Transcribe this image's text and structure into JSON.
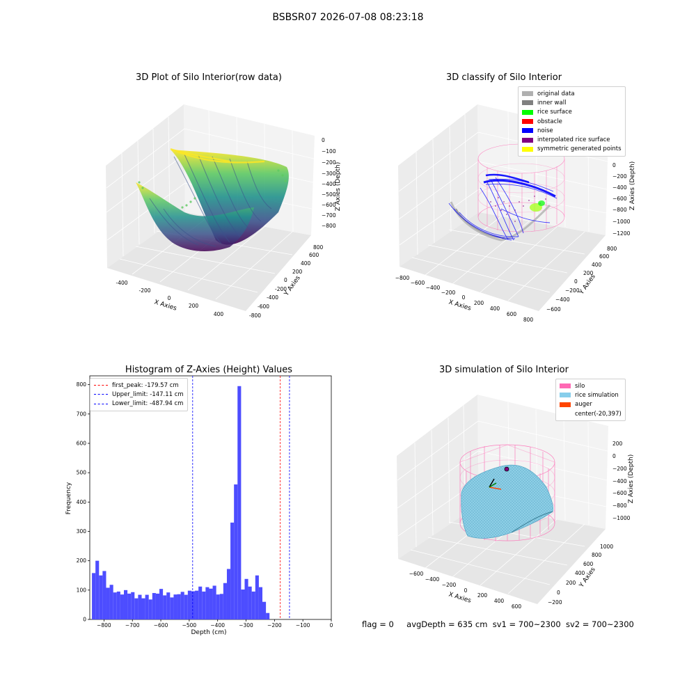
{
  "figure": {
    "title": "BSBSR07 2026-07-08 08:23:18",
    "footer": {
      "flag": "flag = 0",
      "avg_depth": "avgDepth = 635 cm",
      "sv1": "sv1 = 700~2300",
      "sv2": "sv2 = 700~2300"
    }
  },
  "panels": {
    "raw": {
      "title": "3D Plot of Silo Interior(row data)",
      "xlabel": "X Axies",
      "ylabel": "Y Axies",
      "zlabel": "Z Axies (Depth)",
      "xticks": [
        "-400",
        "-200",
        "0",
        "200",
        "400"
      ],
      "yticks": [
        "-800",
        "-600",
        "-400",
        "-200",
        "0",
        "200",
        "400",
        "600",
        "800"
      ],
      "zticks": [
        "0",
        "−100",
        "−200",
        "−300",
        "−400",
        "−500",
        "−600",
        "−700",
        "−800"
      ]
    },
    "classify": {
      "title": "3D classify of Silo Interior",
      "xlabel": "X Axies",
      "ylabel": "Y Axies",
      "zlabel": "Z Axies (Depth)",
      "xticks": [
        "−800",
        "−600",
        "−400",
        "−200",
        "0",
        "200",
        "400",
        "600",
        "800"
      ],
      "yticks": [
        "−600",
        "−400",
        "−200",
        "0",
        "200",
        "400",
        "600",
        "800"
      ],
      "zticks": [
        "400",
        "200",
        "0",
        "−200",
        "−400",
        "−600",
        "−800",
        "−1000",
        "−1200"
      ],
      "legend": [
        {
          "label": "original data",
          "color": "#b0b0b0"
        },
        {
          "label": "inner wall",
          "color": "#808080"
        },
        {
          "label": "rice surface",
          "color": "#00ff00"
        },
        {
          "label": "obstacle",
          "color": "#ff0000"
        },
        {
          "label": "noise",
          "color": "#0000ff"
        },
        {
          "label": "interpolated rice surface",
          "color": "#800080"
        },
        {
          "label": "symmetric generated points",
          "color": "#ffff00"
        }
      ]
    },
    "histogram": {
      "title": "Histogram of Z-Axies (Height) Values",
      "xlabel": "Depth (cm)",
      "ylabel": "Frequency",
      "xticks": [
        "−800",
        "−700",
        "−600",
        "−500",
        "−400",
        "−300",
        "−200",
        "−100",
        "0"
      ],
      "yticks": [
        "0",
        "100",
        "200",
        "300",
        "400",
        "500",
        "600",
        "700",
        "800"
      ],
      "legend": [
        {
          "label": "first_peak: -179.57 cm",
          "color": "#ff0000"
        },
        {
          "label": "Upper_limit: -147.11 cm",
          "color": "#0000ff"
        },
        {
          "label": "Lower_limit: -487.94 cm",
          "color": "#0000ff"
        }
      ]
    },
    "simulation": {
      "title": "3D simulation of Silo Interior",
      "xlabel": "X Axies",
      "ylabel": "Y Axies",
      "zlabel": "Z Axies (Depth)",
      "xticks": [
        "−600",
        "−400",
        "−200",
        "0",
        "200",
        "400",
        "600"
      ],
      "yticks": [
        "−200",
        "0",
        "200",
        "400",
        "600",
        "800",
        "1000"
      ],
      "zticks": [
        "200",
        "0",
        "−200",
        "−400",
        "−600",
        "−800",
        "−1000"
      ],
      "legend": [
        {
          "label": "silo",
          "color": "#ff69b4"
        },
        {
          "label": "rice simulation",
          "color": "#87ceeb"
        },
        {
          "label": "auger",
          "color": "#ff4500"
        },
        {
          "label": "center(-20,397)",
          "color": ""
        }
      ]
    }
  },
  "chart_data": [
    {
      "type": "scatter",
      "title": "3D Plot of Silo Interior(row data)",
      "xlabel": "X Axies",
      "ylabel": "Y Axies",
      "zlabel": "Z Axies (Depth)",
      "xlim": [
        -500,
        500
      ],
      "ylim": [
        -800,
        800
      ],
      "zlim": [
        -850,
        0
      ],
      "colormap": "viridis"
    },
    {
      "type": "scatter",
      "title": "3D classify of Silo Interior",
      "xlabel": "X Axies",
      "ylabel": "Y Axies",
      "zlabel": "Z Axies (Depth)",
      "xlim": [
        -800,
        800
      ],
      "ylim": [
        -600,
        800
      ],
      "zlim": [
        -1200,
        400
      ]
    },
    {
      "type": "bar",
      "title": "Histogram of Z-Axies (Height) Values",
      "xlabel": "Depth (cm)",
      "ylabel": "Frequency",
      "xlim": [
        -850,
        0
      ],
      "ylim": [
        0,
        830
      ],
      "bin_width": 12.5,
      "bin_start": -842.5,
      "values": [
        158,
        200,
        150,
        165,
        108,
        118,
        92,
        95,
        85,
        100,
        88,
        93,
        72,
        84,
        72,
        84,
        68,
        90,
        88,
        104,
        82,
        92,
        75,
        85,
        86,
        94,
        84,
        98,
        96,
        98,
        112,
        95,
        110,
        105,
        115,
        85,
        87,
        124,
        172,
        330,
        460,
        795,
        102,
        138,
        112,
        95,
        150,
        110,
        60,
        22
      ],
      "lines": [
        {
          "name": "first_peak: -179.57 cm",
          "x": -179.57,
          "color": "#ff0000"
        },
        {
          "name": "Upper_limit: -147.11 cm",
          "x": -147.11,
          "color": "#0000ff"
        },
        {
          "name": "Lower_limit: -487.94 cm",
          "x": -487.94,
          "color": "#0000ff"
        }
      ],
      "legend_position": "top-left"
    },
    {
      "type": "area",
      "title": "3D simulation of Silo Interior",
      "xlabel": "X Axies",
      "ylabel": "Y Axies",
      "zlabel": "Z Axies (Depth)",
      "xlim": [
        -800,
        800
      ],
      "ylim": [
        -300,
        1100
      ],
      "zlim": [
        -1150,
        350
      ]
    }
  ]
}
